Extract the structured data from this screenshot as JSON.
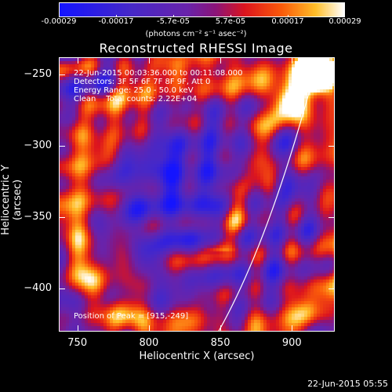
{
  "colorbar": {
    "ticks": [
      "-0.00029",
      "-0.00017",
      "-5.7e-05",
      "5.7e-05",
      "0.00017",
      "0.00029"
    ],
    "unit": "(photons cm⁻² s⁻¹ asec⁻²)"
  },
  "title": "Reconstructed RHESSI Image",
  "annotations": {
    "time_range": "22-Jun-2015 00:03:36.000 to 00:11:08.000",
    "detectors": "Detectors: 3F 5F 6F 7F 8F 9F, Att 0",
    "energy_range": "Energy Range: 25.0 - 50.0 keV",
    "clean_counts": "Clean    Total counts: 2.22E+04",
    "peak": "Position of Peak = [915,-249]"
  },
  "axes": {
    "xlabel": "Heliocentric X (arcsec)",
    "ylabel": "Heliocentric Y (arcsec)",
    "xticks": [
      "750",
      "800",
      "850",
      "900"
    ],
    "yticks": [
      "-250",
      "-300",
      "-350",
      "-400"
    ],
    "xlim": [
      737,
      930
    ],
    "ylim": [
      -430,
      -238
    ]
  },
  "timestamp": "22-Jun-2015 05:55",
  "colors": {
    "background": "#000000",
    "foreground": "#ffffff"
  }
}
